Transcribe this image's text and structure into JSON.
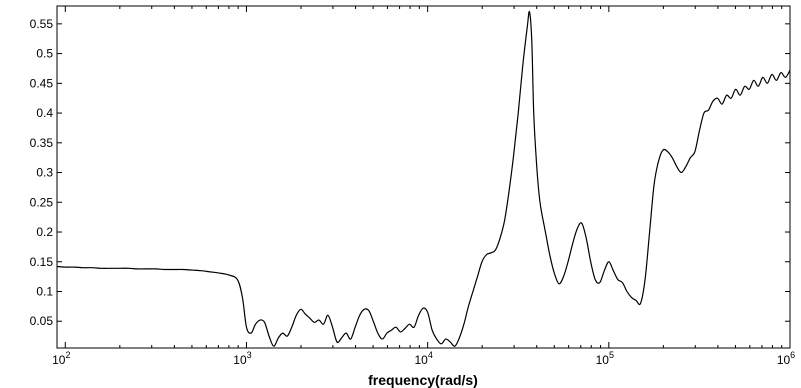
{
  "chart_data": {
    "type": "line",
    "title": "",
    "xlabel": "frequency(rad/s)",
    "ylabel": "",
    "xscale": "log",
    "xlim": [
      90,
      1000000
    ],
    "ylim": [
      0.005,
      0.58
    ],
    "grid": false,
    "legend": "none",
    "line_color": "#000000",
    "x_ticks": [
      {
        "value": 100,
        "base": "10",
        "exp": "2"
      },
      {
        "value": 1000,
        "base": "10",
        "exp": "3"
      },
      {
        "value": 10000,
        "base": "10",
        "exp": "4"
      },
      {
        "value": 100000,
        "base": "10",
        "exp": "5"
      },
      {
        "value": 1000000,
        "base": "10",
        "exp": "6"
      }
    ],
    "y_ticks": [
      {
        "value": 0.05,
        "label": "0.05"
      },
      {
        "value": 0.1,
        "label": "0.1"
      },
      {
        "value": 0.15,
        "label": "0.15"
      },
      {
        "value": 0.2,
        "label": "0.2"
      },
      {
        "value": 0.25,
        "label": "0.25"
      },
      {
        "value": 0.3,
        "label": "0.3"
      },
      {
        "value": 0.35,
        "label": "0.35"
      },
      {
        "value": 0.4,
        "label": "0.4"
      },
      {
        "value": 0.45,
        "label": "0.45"
      },
      {
        "value": 0.5,
        "label": "0.5"
      },
      {
        "value": 0.55,
        "label": "0.55"
      }
    ],
    "series": [
      {
        "x": [
          90,
          100,
          112,
          126,
          141,
          158,
          178,
          200,
          224,
          251,
          282,
          316,
          355,
          398,
          447,
          501,
          562,
          631,
          708,
          794,
          891,
          950,
          1000,
          1060,
          1122,
          1190,
          1259,
          1333,
          1413,
          1500,
          1585,
          1680,
          1778,
          1884,
          1995,
          2113,
          2239,
          2371,
          2512,
          2661,
          2818,
          2985,
          3162,
          3350,
          3548,
          3758,
          3981,
          4217,
          4467,
          4732,
          5012,
          5309,
          5623,
          5957,
          6310,
          6683,
          7079,
          7499,
          7943,
          8414,
          8913,
          9441,
          10000,
          10590,
          11220,
          11890,
          12590,
          13340,
          14130,
          14960,
          15850,
          16790,
          17780,
          18840,
          19950,
          21130,
          22390,
          23710,
          25120,
          26610,
          28180,
          29850,
          31620,
          33500,
          35480,
          36500,
          37580,
          38500,
          39810,
          41000,
          42170,
          44670,
          47320,
          50120,
          53090,
          56230,
          59570,
          63100,
          66830,
          70790,
          74990,
          79430,
          84140,
          89130,
          94410,
          100000,
          105900,
          112200,
          118900,
          125900,
          133400,
          141300,
          149600,
          158500,
          167900,
          177800,
          188400,
          199500,
          211300,
          223900,
          237100,
          251200,
          266100,
          281800,
          298500,
          316200,
          335000,
          354800,
          375800,
          398100,
          421700,
          446700,
          473200,
          501200,
          530900,
          562300,
          595700,
          631000,
          668300,
          707900,
          749900,
          794300,
          841400,
          891300,
          944100,
          1000000
        ],
        "y": [
          0.142,
          0.141,
          0.141,
          0.14,
          0.14,
          0.139,
          0.139,
          0.139,
          0.139,
          0.138,
          0.138,
          0.138,
          0.137,
          0.137,
          0.137,
          0.136,
          0.135,
          0.133,
          0.131,
          0.128,
          0.12,
          0.09,
          0.04,
          0.03,
          0.045,
          0.052,
          0.048,
          0.025,
          0.008,
          0.022,
          0.03,
          0.025,
          0.04,
          0.06,
          0.07,
          0.062,
          0.055,
          0.048,
          0.052,
          0.045,
          0.06,
          0.04,
          0.015,
          0.022,
          0.03,
          0.02,
          0.04,
          0.06,
          0.07,
          0.068,
          0.05,
          0.03,
          0.02,
          0.03,
          0.035,
          0.04,
          0.032,
          0.038,
          0.045,
          0.04,
          0.06,
          0.072,
          0.065,
          0.035,
          0.02,
          0.012,
          0.02,
          0.015,
          0.008,
          0.022,
          0.045,
          0.075,
          0.1,
          0.125,
          0.15,
          0.162,
          0.165,
          0.17,
          0.19,
          0.22,
          0.27,
          0.33,
          0.4,
          0.48,
          0.545,
          0.57,
          0.52,
          0.4,
          0.32,
          0.27,
          0.24,
          0.2,
          0.16,
          0.13,
          0.113,
          0.125,
          0.15,
          0.18,
          0.205,
          0.215,
          0.19,
          0.15,
          0.12,
          0.115,
          0.135,
          0.15,
          0.135,
          0.12,
          0.115,
          0.1,
          0.09,
          0.085,
          0.08,
          0.12,
          0.2,
          0.28,
          0.32,
          0.338,
          0.335,
          0.325,
          0.31,
          0.3,
          0.31,
          0.325,
          0.335,
          0.37,
          0.4,
          0.405,
          0.42,
          0.425,
          0.415,
          0.43,
          0.425,
          0.44,
          0.43,
          0.445,
          0.44,
          0.455,
          0.445,
          0.46,
          0.45,
          0.465,
          0.455,
          0.468,
          0.46,
          0.472
        ]
      }
    ]
  }
}
